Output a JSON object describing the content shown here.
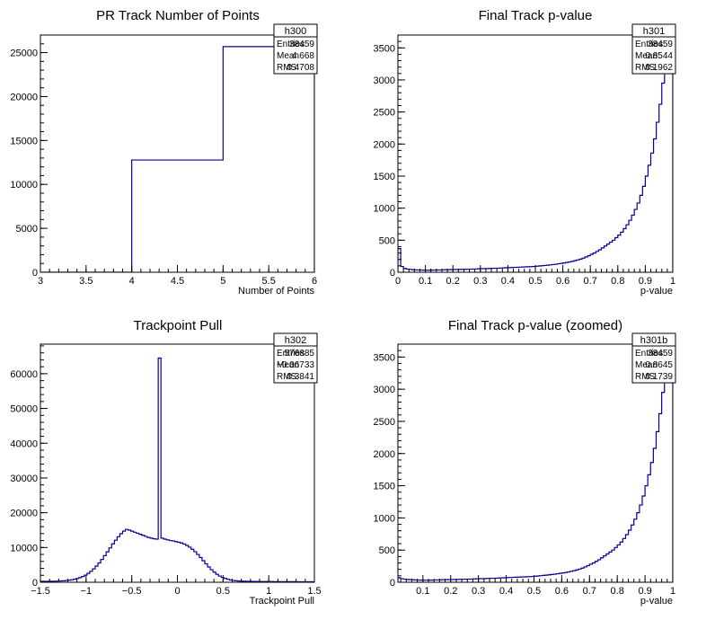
{
  "chart_data": [
    {
      "id": "pad-1",
      "type": "histogram",
      "title": "PR Track Number of Points",
      "xlabel": "Number of Points",
      "ylabel": "",
      "xlim": [
        3,
        6
      ],
      "ylim": [
        0,
        27000
      ],
      "xticks": [
        {
          "v": 3,
          "label": "3"
        },
        {
          "v": 3.5,
          "label": "3.5"
        },
        {
          "v": 4,
          "label": "4"
        },
        {
          "v": 4.5,
          "label": "4.5"
        },
        {
          "v": 5,
          "label": "5"
        },
        {
          "v": 5.5,
          "label": "5.5"
        },
        {
          "v": 6,
          "label": "6"
        }
      ],
      "xminor": 0.1,
      "yticks": [
        {
          "v": 0,
          "label": "0"
        },
        {
          "v": 5000,
          "label": "5000"
        },
        {
          "v": 10000,
          "label": "10000"
        },
        {
          "v": 15000,
          "label": "15000"
        },
        {
          "v": 20000,
          "label": "20000"
        },
        {
          "v": 25000,
          "label": "25000"
        }
      ],
      "yminor": 1000,
      "stats": {
        "name": "h300",
        "rows": [
          {
            "label": "Entries",
            "value": "38459"
          },
          {
            "label": "Mean",
            "value": "4.668"
          },
          {
            "label": "RMS",
            "value": "0.4708"
          }
        ]
      },
      "bins": {
        "edges": [
          3,
          4,
          5,
          6
        ],
        "values": [
          0,
          12780,
          25680
        ]
      },
      "line_color": "#000099",
      "grid": false
    },
    {
      "id": "pad-2",
      "type": "histogram",
      "title": "Final Track p-value",
      "xlabel": "p-value",
      "ylabel": "",
      "xlim": [
        0,
        1
      ],
      "ylim": [
        0,
        3700
      ],
      "xticks": [
        {
          "v": 0,
          "label": "0"
        },
        {
          "v": 0.1,
          "label": "0.1"
        },
        {
          "v": 0.2,
          "label": "0.2"
        },
        {
          "v": 0.3,
          "label": "0.3"
        },
        {
          "v": 0.4,
          "label": "0.4"
        },
        {
          "v": 0.5,
          "label": "0.5"
        },
        {
          "v": 0.6,
          "label": "0.6"
        },
        {
          "v": 0.7,
          "label": "0.7"
        },
        {
          "v": 0.8,
          "label": "0.8"
        },
        {
          "v": 0.9,
          "label": "0.9"
        },
        {
          "v": 1,
          "label": "1"
        }
      ],
      "xminor": 0.02,
      "yticks": [
        {
          "v": 0,
          "label": "0"
        },
        {
          "v": 500,
          "label": "500"
        },
        {
          "v": 1000,
          "label": "1000"
        },
        {
          "v": 1500,
          "label": "1500"
        },
        {
          "v": 2000,
          "label": "2000"
        },
        {
          "v": 2500,
          "label": "2500"
        },
        {
          "v": 3000,
          "label": "3000"
        },
        {
          "v": 3500,
          "label": "3500"
        }
      ],
      "yminor": 100,
      "stats": {
        "name": "h301",
        "rows": [
          {
            "label": "Entries",
            "value": "38459"
          },
          {
            "label": "Mean",
            "value": "0.8544"
          },
          {
            "label": "RMS",
            "value": "0.1962"
          }
        ]
      },
      "bins": {
        "xmin": 0,
        "width": 0.01,
        "values": [
          370,
          90,
          60,
          50,
          45,
          40,
          38,
          36,
          34,
          33,
          32,
          32,
          33,
          34,
          36,
          36,
          38,
          40,
          40,
          42,
          42,
          44,
          44,
          46,
          46,
          48,
          48,
          50,
          52,
          54,
          56,
          56,
          58,
          60,
          62,
          62,
          64,
          66,
          68,
          70,
          72,
          74,
          76,
          78,
          80,
          82,
          84,
          86,
          88,
          90,
          94,
          98,
          102,
          106,
          110,
          115,
          120,
          125,
          132,
          138,
          145,
          152,
          160,
          170,
          180,
          192,
          205,
          220,
          238,
          258,
          280,
          300,
          325,
          350,
          380,
          410,
          440,
          470,
          500,
          540,
          580,
          625,
          680,
          740,
          810,
          890,
          980,
          1080,
          1200,
          1340,
          1500,
          1670,
          1860,
          2080,
          2340,
          2620,
          2950,
          3400,
          4300,
          6000
        ]
      },
      "line_color": "#000099",
      "grid": false
    },
    {
      "id": "pad-3",
      "type": "histogram",
      "title": "Trackpoint Pull",
      "xlabel": "Trackpoint Pull",
      "ylabel": "",
      "xlim": [
        -1.5,
        1.5
      ],
      "ylim": [
        0,
        68500
      ],
      "xticks": [
        {
          "v": -1.5,
          "label": "−1.5"
        },
        {
          "v": -1,
          "label": "−1"
        },
        {
          "v": -0.5,
          "label": "−0.5"
        },
        {
          "v": 0,
          "label": "0"
        },
        {
          "v": 0.5,
          "label": "0.5"
        },
        {
          "v": 1,
          "label": "1"
        },
        {
          "v": 1.5,
          "label": "1.5"
        }
      ],
      "xminor": 0.1,
      "yticks": [
        {
          "v": 0,
          "label": "0"
        },
        {
          "v": 10000,
          "label": "10000"
        },
        {
          "v": 20000,
          "label": "20000"
        },
        {
          "v": 30000,
          "label": "30000"
        },
        {
          "v": 40000,
          "label": "40000"
        },
        {
          "v": 50000,
          "label": "50000"
        },
        {
          "v": 60000,
          "label": "60000"
        }
      ],
      "yminor": 2000,
      "stats": {
        "name": "h302",
        "rows": [
          {
            "label": "Entries",
            "value": "576885"
          },
          {
            "label": "Mean",
            "value": "−0.06733"
          },
          {
            "label": "RMS",
            "value": "0.3841"
          }
        ]
      },
      "bins": {
        "xmin": -1.5,
        "width": 0.03,
        "values": [
          250,
          250,
          260,
          270,
          290,
          310,
          340,
          380,
          430,
          500,
          600,
          720,
          880,
          1080,
          1330,
          1650,
          2050,
          2550,
          3150,
          3850,
          4650,
          5550,
          6550,
          7650,
          8750,
          9900,
          11050,
          12100,
          13100,
          14000,
          14700,
          15200,
          15000,
          14700,
          14400,
          14100,
          13800,
          13500,
          13200,
          12900,
          12700,
          12500,
          12400,
          64500,
          12700,
          12400,
          12200,
          12000,
          11900,
          11700,
          11500,
          11300,
          11000,
          10600,
          10100,
          9500,
          8800,
          8000,
          7100,
          6200,
          5300,
          4400,
          3600,
          2900,
          2300,
          1800,
          1400,
          1100,
          850,
          650,
          500,
          420,
          360,
          320,
          290,
          270,
          250,
          235,
          225,
          215,
          205,
          200,
          195,
          190,
          185,
          180,
          175,
          170,
          165,
          160,
          158,
          155,
          152,
          150,
          148,
          146,
          144,
          142,
          140,
          138
        ]
      },
      "line_color": "#000099",
      "grid": false
    },
    {
      "id": "pad-4",
      "type": "histogram",
      "title": "Final Track p-value (zoomed)",
      "xlabel": "p-value",
      "ylabel": "",
      "xlim": [
        0.01,
        1
      ],
      "ylim": [
        0,
        3700
      ],
      "xticks": [
        {
          "v": 0.1,
          "label": "0.1"
        },
        {
          "v": 0.2,
          "label": "0.2"
        },
        {
          "v": 0.3,
          "label": "0.3"
        },
        {
          "v": 0.4,
          "label": "0.4"
        },
        {
          "v": 0.5,
          "label": "0.5"
        },
        {
          "v": 0.6,
          "label": "0.6"
        },
        {
          "v": 0.7,
          "label": "0.7"
        },
        {
          "v": 0.8,
          "label": "0.8"
        },
        {
          "v": 0.9,
          "label": "0.9"
        },
        {
          "v": 1,
          "label": "1"
        }
      ],
      "xminor": 0.02,
      "yticks": [
        {
          "v": 0,
          "label": "0"
        },
        {
          "v": 500,
          "label": "500"
        },
        {
          "v": 1000,
          "label": "1000"
        },
        {
          "v": 1500,
          "label": "1500"
        },
        {
          "v": 2000,
          "label": "2000"
        },
        {
          "v": 2500,
          "label": "2500"
        },
        {
          "v": 3000,
          "label": "3000"
        },
        {
          "v": 3500,
          "label": "3500"
        }
      ],
      "yminor": 100,
      "stats": {
        "name": "h301b",
        "rows": [
          {
            "label": "Entries",
            "value": "38459"
          },
          {
            "label": "Mean",
            "value": "0.8645"
          },
          {
            "label": "RMS",
            "value": "0.1739"
          }
        ]
      },
      "bins": {
        "xmin": 0.01,
        "width": 0.01,
        "values": [
          70,
          55,
          48,
          44,
          40,
          38,
          36,
          34,
          33,
          32,
          32,
          33,
          34,
          36,
          36,
          38,
          40,
          40,
          42,
          42,
          44,
          44,
          46,
          46,
          48,
          48,
          50,
          52,
          54,
          56,
          56,
          58,
          60,
          62,
          62,
          64,
          66,
          68,
          70,
          72,
          74,
          76,
          78,
          80,
          82,
          84,
          86,
          88,
          90,
          94,
          98,
          102,
          106,
          110,
          115,
          120,
          125,
          132,
          138,
          145,
          152,
          160,
          170,
          180,
          192,
          205,
          220,
          238,
          258,
          280,
          300,
          325,
          350,
          380,
          410,
          440,
          470,
          500,
          540,
          580,
          625,
          680,
          740,
          810,
          890,
          980,
          1080,
          1200,
          1340,
          1500,
          1670,
          1860,
          2080,
          2340,
          2620,
          2950,
          3400,
          4300,
          6000
        ]
      },
      "line_color": "#000099",
      "grid": false
    }
  ]
}
